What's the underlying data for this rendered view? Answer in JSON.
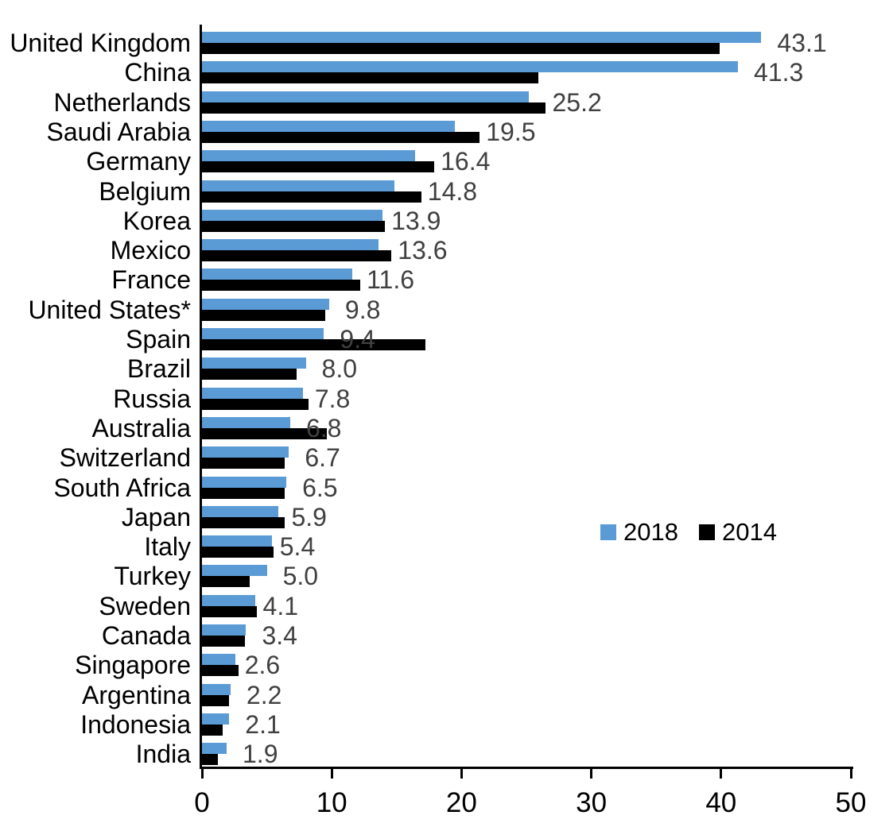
{
  "chart_data": {
    "type": "bar",
    "orientation": "horizontal",
    "title": "",
    "xlabel": "",
    "ylabel": "",
    "xlim": [
      0,
      50
    ],
    "x_ticks": [
      "0",
      "10",
      "20",
      "30",
      "40",
      "50"
    ],
    "grid": "off",
    "legend_position": "middle-right",
    "categories": [
      "United Kingdom",
      "China",
      "Netherlands",
      "Saudi Arabia",
      "Germany",
      "Belgium",
      "Korea",
      "Mexico",
      "France",
      "United States*",
      "Spain",
      "Brazil",
      "Russia",
      "Australia",
      "Switzerland",
      "South Africa",
      "Japan",
      "Italy",
      "Turkey",
      "Sweden",
      "Canada",
      "Singapore",
      "Argentina",
      "Indonesia",
      "India"
    ],
    "series": [
      {
        "name": "2018",
        "color": "#5B9BD5",
        "values": [
          43.1,
          41.3,
          25.2,
          19.5,
          16.4,
          14.8,
          13.9,
          13.6,
          11.6,
          9.8,
          9.4,
          8.0,
          7.8,
          6.8,
          6.7,
          6.5,
          5.9,
          5.4,
          5.0,
          4.1,
          3.4,
          2.6,
          2.2,
          2.1,
          1.9
        ]
      },
      {
        "name": "2014",
        "color": "#000000",
        "values": [
          39.9,
          25.9,
          26.5,
          21.4,
          17.9,
          16.9,
          14.1,
          14.6,
          12.2,
          9.5,
          17.2,
          7.3,
          8.2,
          9.6,
          6.4,
          6.4,
          6.4,
          5.5,
          3.7,
          4.2,
          3.3,
          2.8,
          2.1,
          1.6,
          1.2
        ]
      }
    ],
    "data_labels": {
      "series": "2018",
      "values": [
        "43.1",
        "41.3",
        "25.2",
        "19.5",
        "16.4",
        "14.8",
        "13.9",
        "13.6",
        "11.6",
        "9.8",
        "9.4",
        "8.0",
        "7.8",
        "6.8",
        "6.7",
        "6.5",
        "5.9",
        "5.4",
        "5.0",
        "4.1",
        "3.4",
        "2.6",
        "2.2",
        "2.1",
        "1.9"
      ],
      "color": "#404040"
    },
    "colors": {
      "axis": "#000000",
      "background": "#FFFFFF",
      "category_text": "#000000",
      "tick_text": "#000000"
    }
  }
}
